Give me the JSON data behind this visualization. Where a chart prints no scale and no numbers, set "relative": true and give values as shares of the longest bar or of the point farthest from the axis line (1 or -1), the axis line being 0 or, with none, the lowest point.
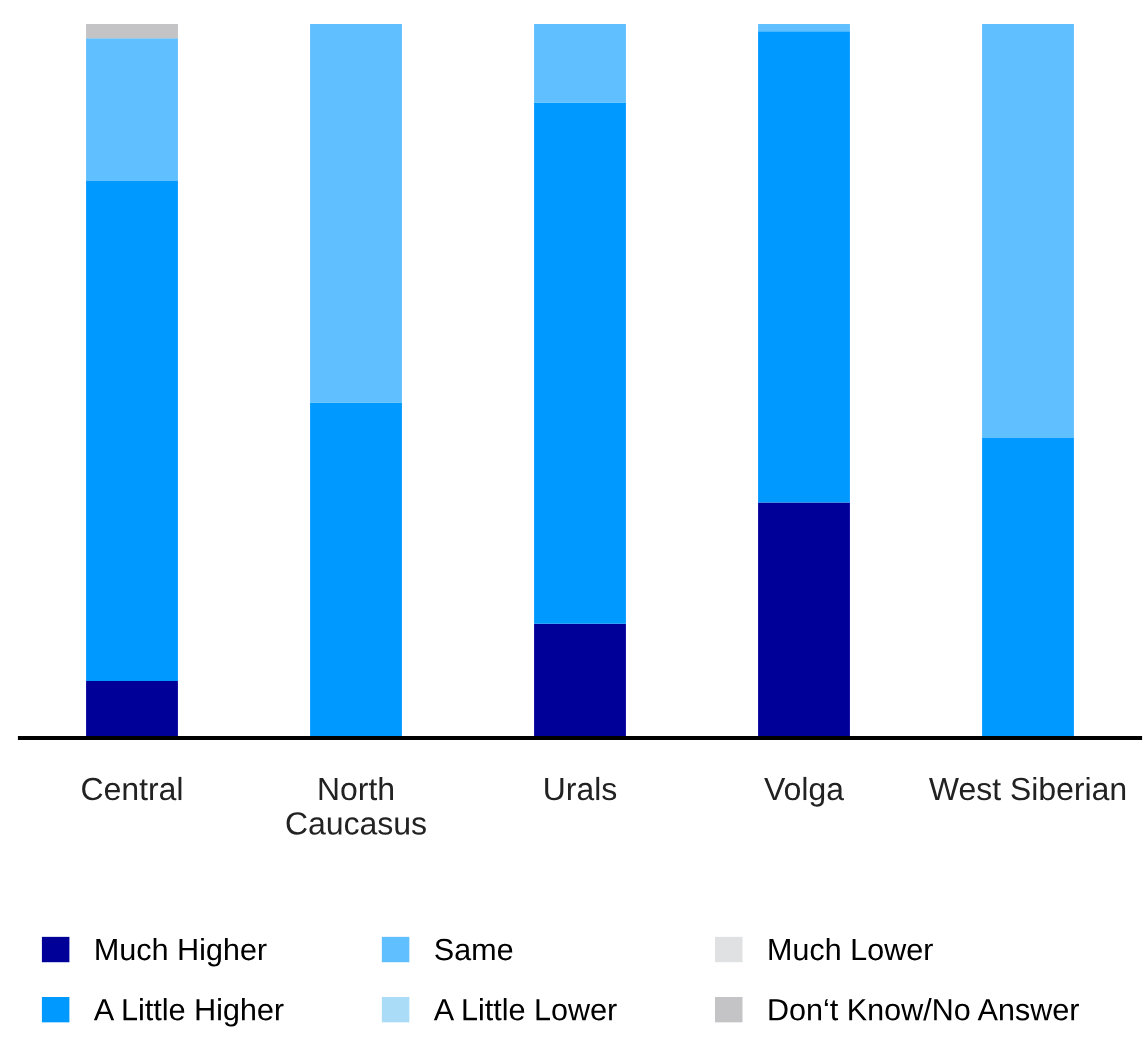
{
  "chart_data": {
    "type": "bar",
    "stacked": true,
    "relative": true,
    "legend": "bottom",
    "grid": false,
    "categories": [
      "Central",
      "North\nCaucasus",
      "Urals",
      "Volga",
      "West Siberian"
    ],
    "series": [
      {
        "name": "Much Higher",
        "color": "#000099",
        "values": [
          0.08,
          0,
          0.16,
          0.33,
          0
        ]
      },
      {
        "name": "A Little Higher",
        "color": "#0099ff",
        "values": [
          0.7,
          0.47,
          0.73,
          0.66,
          0.42
        ]
      },
      {
        "name": "Same",
        "color": "#5fbfff",
        "values": [
          0.2,
          0.53,
          0.11,
          0.01,
          0.58
        ]
      },
      {
        "name": "A Little Lower",
        "color": "#aadcf7",
        "values": [
          0,
          0,
          0,
          0,
          0
        ]
      },
      {
        "name": "Much Lower",
        "color": "#e0e1e3",
        "values": [
          0,
          0,
          0,
          0,
          0
        ]
      },
      {
        "name": "Don‘t Know/No Answer",
        "color": "#c4c4c6",
        "values": [
          0.02,
          0,
          0,
          0,
          0
        ]
      }
    ]
  }
}
